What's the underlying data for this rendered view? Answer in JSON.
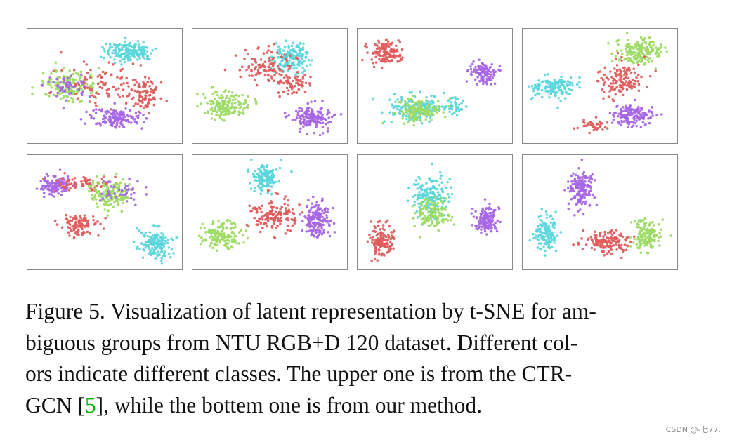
{
  "colors": {
    "red": "#e05c5c",
    "cyan": "#5bd6dc",
    "green": "#9ddb64",
    "purple": "#a866e6",
    "panel_border": "#8a8a8a",
    "citation": "#00b000"
  },
  "chart_data": {
    "type": "scatter",
    "method": "t-SNE",
    "rows": 2,
    "cols": 4,
    "grid": false,
    "axes": "hidden",
    "title": "",
    "xlabel": "",
    "ylabel": "",
    "classes": [
      "red",
      "cyan",
      "green",
      "purple"
    ],
    "panels": [
      {
        "row": 0,
        "col": 0,
        "clusters": [
          {
            "class": "cyan",
            "center": [
              0.66,
              0.2
            ],
            "spread": [
              0.16,
              0.09
            ],
            "count": 170
          },
          {
            "class": "green",
            "center": [
              0.27,
              0.5
            ],
            "spread": [
              0.17,
              0.12
            ],
            "count": 160
          },
          {
            "class": "purple",
            "center": [
              0.27,
              0.5
            ],
            "spread": [
              0.17,
              0.12
            ],
            "count": 60
          },
          {
            "class": "red",
            "center": [
              0.5,
              0.46
            ],
            "spread": [
              0.25,
              0.2
            ],
            "count": 80
          },
          {
            "class": "red",
            "center": [
              0.76,
              0.58
            ],
            "spread": [
              0.09,
              0.13
            ],
            "count": 100
          },
          {
            "class": "purple",
            "center": [
              0.58,
              0.78
            ],
            "spread": [
              0.16,
              0.09
            ],
            "count": 150
          }
        ]
      },
      {
        "row": 0,
        "col": 1,
        "clusters": [
          {
            "class": "cyan",
            "center": [
              0.63,
              0.25
            ],
            "spread": [
              0.12,
              0.13
            ],
            "count": 160
          },
          {
            "class": "red",
            "center": [
              0.48,
              0.33
            ],
            "spread": [
              0.18,
              0.15
            ],
            "count": 110
          },
          {
            "class": "red",
            "center": [
              0.66,
              0.48
            ],
            "spread": [
              0.12,
              0.1
            ],
            "count": 60
          },
          {
            "class": "green",
            "center": [
              0.22,
              0.67
            ],
            "spread": [
              0.14,
              0.11
            ],
            "count": 160
          },
          {
            "class": "purple",
            "center": [
              0.77,
              0.77
            ],
            "spread": [
              0.13,
              0.11
            ],
            "count": 160
          }
        ]
      },
      {
        "row": 0,
        "col": 2,
        "clusters": [
          {
            "class": "red",
            "center": [
              0.18,
              0.21
            ],
            "spread": [
              0.1,
              0.1
            ],
            "count": 130
          },
          {
            "class": "purple",
            "center": [
              0.81,
              0.38
            ],
            "spread": [
              0.08,
              0.1
            ],
            "count": 120
          },
          {
            "class": "cyan",
            "center": [
              0.38,
              0.7
            ],
            "spread": [
              0.17,
              0.12
            ],
            "count": 160
          },
          {
            "class": "green",
            "center": [
              0.4,
              0.72
            ],
            "spread": [
              0.14,
              0.1
            ],
            "count": 130
          },
          {
            "class": "cyan",
            "center": [
              0.62,
              0.68
            ],
            "spread": [
              0.08,
              0.1
            ],
            "count": 40
          }
        ]
      },
      {
        "row": 0,
        "col": 3,
        "clusters": [
          {
            "class": "green",
            "center": [
              0.75,
              0.2
            ],
            "spread": [
              0.14,
              0.11
            ],
            "count": 170
          },
          {
            "class": "red",
            "center": [
              0.63,
              0.45
            ],
            "spread": [
              0.14,
              0.16
            ],
            "count": 130
          },
          {
            "class": "cyan",
            "center": [
              0.2,
              0.51
            ],
            "spread": [
              0.14,
              0.1
            ],
            "count": 140
          },
          {
            "class": "purple",
            "center": [
              0.72,
              0.76
            ],
            "spread": [
              0.14,
              0.09
            ],
            "count": 150
          },
          {
            "class": "red",
            "center": [
              0.45,
              0.85
            ],
            "spread": [
              0.08,
              0.05
            ],
            "count": 40
          }
        ]
      },
      {
        "row": 1,
        "col": 0,
        "clusters": [
          {
            "class": "purple",
            "center": [
              0.18,
              0.27
            ],
            "spread": [
              0.1,
              0.09
            ],
            "count": 120
          },
          {
            "class": "red",
            "center": [
              0.36,
              0.24
            ],
            "spread": [
              0.18,
              0.07
            ],
            "count": 70
          },
          {
            "class": "green",
            "center": [
              0.55,
              0.33
            ],
            "spread": [
              0.15,
              0.12
            ],
            "count": 150
          },
          {
            "class": "purple",
            "center": [
              0.6,
              0.32
            ],
            "spread": [
              0.15,
              0.12
            ],
            "count": 40
          },
          {
            "class": "red",
            "center": [
              0.33,
              0.62
            ],
            "spread": [
              0.11,
              0.08
            ],
            "count": 110
          },
          {
            "class": "cyan",
            "center": [
              0.83,
              0.77
            ],
            "spread": [
              0.1,
              0.13
            ],
            "count": 150
          }
        ]
      },
      {
        "row": 1,
        "col": 1,
        "clusters": [
          {
            "class": "cyan",
            "center": [
              0.47,
              0.2
            ],
            "spread": [
              0.08,
              0.12
            ],
            "count": 140
          },
          {
            "class": "red",
            "center": [
              0.52,
              0.52
            ],
            "spread": [
              0.15,
              0.15
            ],
            "count": 140
          },
          {
            "class": "green",
            "center": [
              0.19,
              0.7
            ],
            "spread": [
              0.13,
              0.11
            ],
            "count": 150
          },
          {
            "class": "purple",
            "center": [
              0.81,
              0.57
            ],
            "spread": [
              0.09,
              0.15
            ],
            "count": 160
          }
        ]
      },
      {
        "row": 1,
        "col": 2,
        "clusters": [
          {
            "class": "cyan",
            "center": [
              0.47,
              0.37
            ],
            "spread": [
              0.12,
              0.2
            ],
            "count": 160
          },
          {
            "class": "green",
            "center": [
              0.48,
              0.52
            ],
            "spread": [
              0.12,
              0.13
            ],
            "count": 130
          },
          {
            "class": "red",
            "center": [
              0.15,
              0.74
            ],
            "spread": [
              0.08,
              0.13
            ],
            "count": 140
          },
          {
            "class": "purple",
            "center": [
              0.84,
              0.57
            ],
            "spread": [
              0.08,
              0.11
            ],
            "count": 140
          }
        ]
      },
      {
        "row": 1,
        "col": 3,
        "clusters": [
          {
            "class": "purple",
            "center": [
              0.38,
              0.3
            ],
            "spread": [
              0.08,
              0.16
            ],
            "count": 160
          },
          {
            "class": "cyan",
            "center": [
              0.15,
              0.68
            ],
            "spread": [
              0.07,
              0.15
            ],
            "count": 140
          },
          {
            "class": "red",
            "center": [
              0.55,
              0.75
            ],
            "spread": [
              0.15,
              0.09
            ],
            "count": 150
          },
          {
            "class": "green",
            "center": [
              0.8,
              0.7
            ],
            "spread": [
              0.09,
              0.13
            ],
            "count": 150
          }
        ]
      }
    ]
  },
  "caption": {
    "line1": "Figure 5.  Visualization of latent representation by t-SNE for am-",
    "line2": "biguous groups from NTU RGB+D 120 dataset.  Different col-",
    "line3": "ors indicate different classes.  The upper one is from the CTR-",
    "line4_pre": "GCN [",
    "line4_ref": "5",
    "line4_post": "], while the bottem one is from our method."
  },
  "watermark": "CSDN @-七77."
}
